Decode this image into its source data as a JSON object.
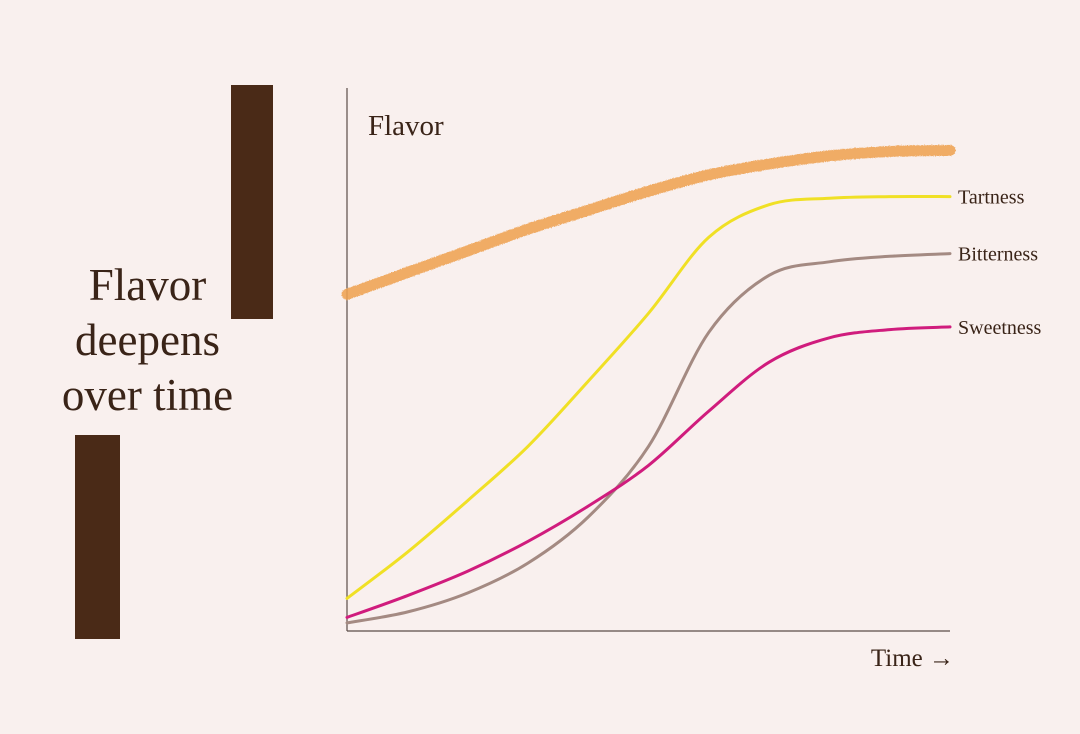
{
  "headline": {
    "line1": "Flavor",
    "line2": "deepens",
    "line3": "over time"
  },
  "colors": {
    "background": "#f9f0ee",
    "accent_bars": "#4a2a17",
    "text": "#3a2418",
    "axis": "#5b4c47"
  },
  "chart_data": {
    "type": "line",
    "ylabel": "Flavor",
    "xlabel": "Time →",
    "xlim": [
      0,
      10
    ],
    "ylim": [
      0,
      10
    ],
    "grid": false,
    "legend": "end-of-line labels",
    "series": [
      {
        "name": "",
        "color": "#efa252",
        "style": "thick-brush",
        "x": [
          0,
          1,
          2,
          3,
          4,
          5,
          6,
          7,
          8,
          9,
          10
        ],
        "y": [
          6.2,
          6.6,
          7.0,
          7.4,
          7.75,
          8.1,
          8.4,
          8.6,
          8.75,
          8.83,
          8.85
        ]
      },
      {
        "name": "Tartness",
        "color": "#f0e025",
        "x": [
          0,
          1,
          2,
          3,
          4,
          5,
          6,
          7,
          8,
          9,
          10
        ],
        "y": [
          0.6,
          1.45,
          2.4,
          3.4,
          4.6,
          5.85,
          7.25,
          7.85,
          7.97,
          8.0,
          8.0
        ]
      },
      {
        "name": "Bitterness",
        "color": "#a48a82",
        "x": [
          0,
          1,
          2,
          3,
          4,
          5,
          6,
          7,
          8,
          9,
          10
        ],
        "y": [
          0.15,
          0.35,
          0.7,
          1.25,
          2.1,
          3.4,
          5.5,
          6.55,
          6.8,
          6.9,
          6.95
        ]
      },
      {
        "name": "Sweetness",
        "color": "#d01c7d",
        "x": [
          0,
          1,
          2,
          3,
          4,
          5,
          6,
          7,
          8,
          9,
          10
        ],
        "y": [
          0.25,
          0.65,
          1.1,
          1.65,
          2.3,
          3.05,
          4.05,
          4.95,
          5.4,
          5.55,
          5.6
        ]
      }
    ]
  }
}
